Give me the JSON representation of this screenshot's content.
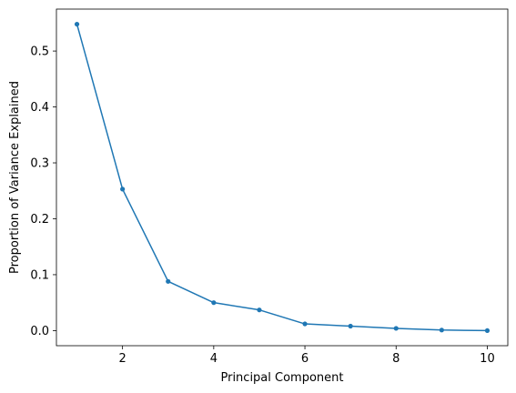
{
  "chart_data": {
    "type": "line",
    "title": "",
    "xlabel": "Principal Component",
    "ylabel": "Proportion of Variance Explained",
    "xlim": [
      0.55,
      10.45
    ],
    "ylim": [
      -0.027,
      0.575
    ],
    "x_ticks": [
      2,
      4,
      6,
      8,
      10
    ],
    "y_ticks": [
      0.0,
      0.1,
      0.2,
      0.3,
      0.4,
      0.5
    ],
    "x_tick_labels": [
      "2",
      "4",
      "6",
      "8",
      "10"
    ],
    "y_tick_labels": [
      "0.0",
      "0.1",
      "0.2",
      "0.3",
      "0.4",
      "0.5"
    ],
    "grid": false,
    "series": [
      {
        "color": "#1f77b4",
        "marker": "dot",
        "x": [
          1,
          2,
          3,
          4,
          5,
          6,
          7,
          8,
          9,
          10
        ],
        "y": [
          0.548,
          0.253,
          0.088,
          0.05,
          0.037,
          0.012,
          0.008,
          0.004,
          0.001,
          0.0
        ]
      }
    ]
  }
}
